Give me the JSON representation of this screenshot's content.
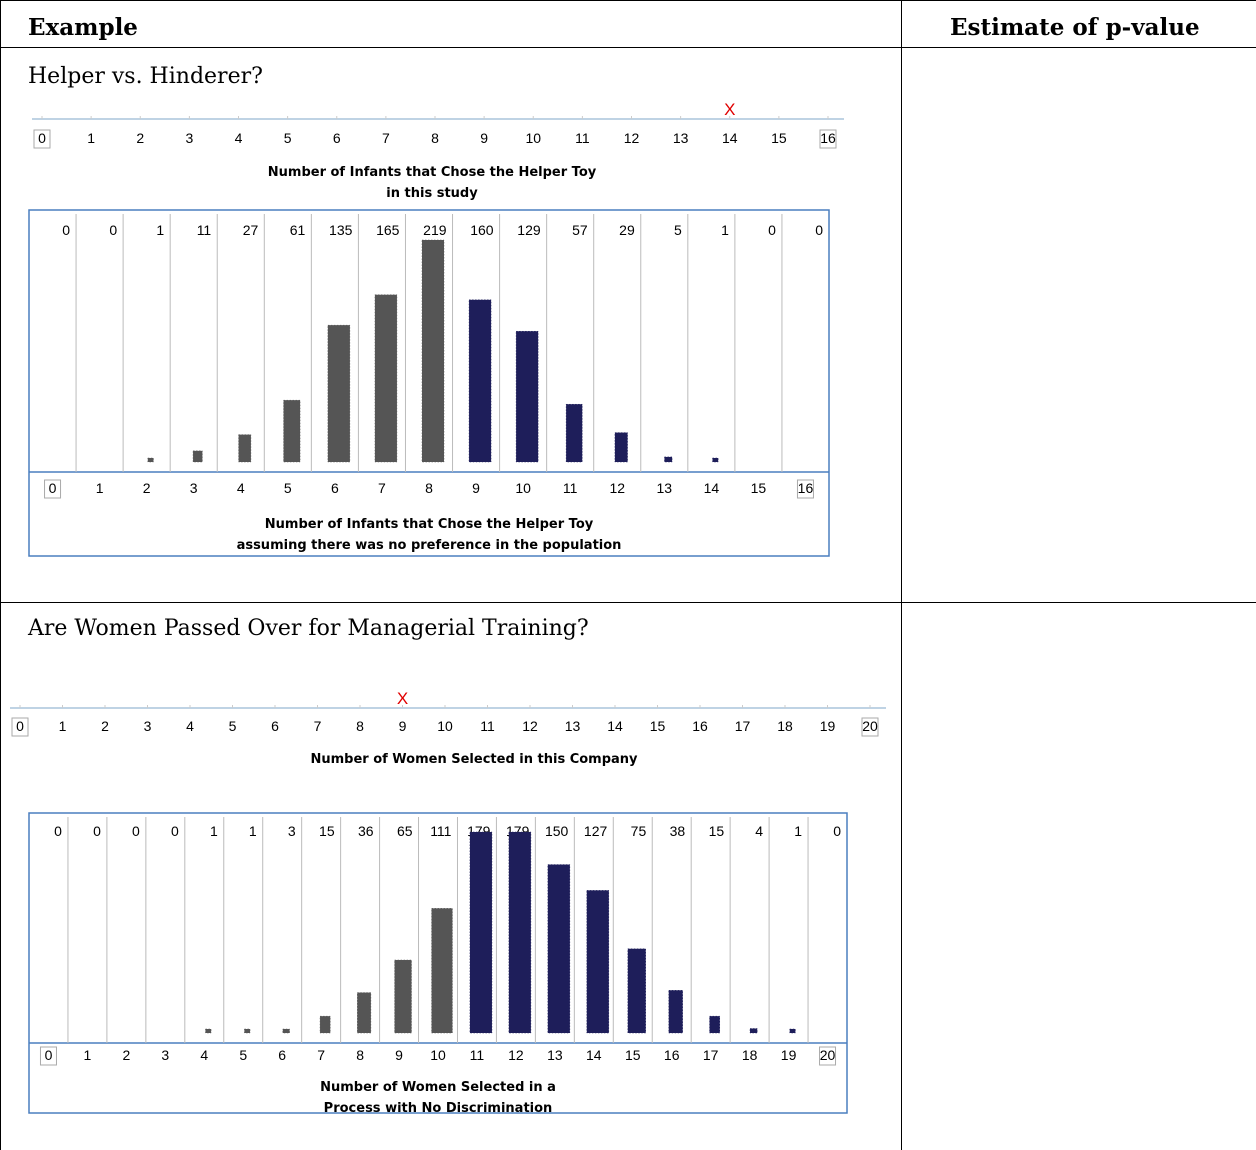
{
  "table": {
    "headers": [
      "Example",
      "Estimate of p-value"
    ],
    "rows": [
      {
        "title": "Helper vs. Hinderer?",
        "estimate": "",
        "observed_axis": {
          "ticks": [
            "0",
            "1",
            "2",
            "3",
            "4",
            "5",
            "6",
            "7",
            "8",
            "9",
            "10",
            "11",
            "12",
            "13",
            "14",
            "15",
            "16"
          ],
          "caption_lines": [
            "Number of Infants that Chose the Helper Toy",
            "in this study"
          ],
          "marker": "X",
          "observed_value": 14
        },
        "chart_data": {
          "type": "bar",
          "categories": [
            "0",
            "1",
            "2",
            "3",
            "4",
            "5",
            "6",
            "7",
            "8",
            "9",
            "10",
            "11",
            "12",
            "13",
            "14",
            "15",
            "16"
          ],
          "values": [
            0,
            0,
            1,
            11,
            27,
            61,
            135,
            165,
            219,
            160,
            129,
            57,
            29,
            5,
            1,
            0,
            0
          ],
          "xlabel_lines": [
            "Number of Infants that Chose the Helper Toy",
            "assuming there was no preference in the population"
          ],
          "ylim": [
            0,
            219
          ],
          "bar_colors": {
            "lower_half": "#555555",
            "upper_half": "#1e1e5a"
          }
        }
      },
      {
        "title": "Are Women Passed Over for Managerial Training?",
        "estimate": "",
        "observed_axis": {
          "ticks": [
            "0",
            "1",
            "2",
            "3",
            "4",
            "5",
            "6",
            "7",
            "8",
            "9",
            "10",
            "11",
            "12",
            "13",
            "14",
            "15",
            "16",
            "17",
            "18",
            "19",
            "20"
          ],
          "caption_lines": [
            "Number of Women Selected in this Company"
          ],
          "marker": "X",
          "observed_value": 9
        },
        "chart_data": {
          "type": "bar",
          "categories": [
            "0",
            "1",
            "2",
            "3",
            "4",
            "5",
            "6",
            "7",
            "8",
            "9",
            "10",
            "11",
            "12",
            "13",
            "14",
            "15",
            "16",
            "17",
            "18",
            "19",
            "20"
          ],
          "values": [
            0,
            0,
            0,
            0,
            1,
            1,
            3,
            15,
            36,
            65,
            111,
            179,
            179,
            150,
            127,
            75,
            38,
            15,
            4,
            1,
            0
          ],
          "xlabel_lines": [
            "Number of Women Selected in a",
            "Process with No Discrimination"
          ],
          "ylim": [
            0,
            179
          ],
          "bar_colors": {
            "lower_half": "#555555",
            "upper_half": "#1e1e5a"
          }
        }
      }
    ]
  }
}
